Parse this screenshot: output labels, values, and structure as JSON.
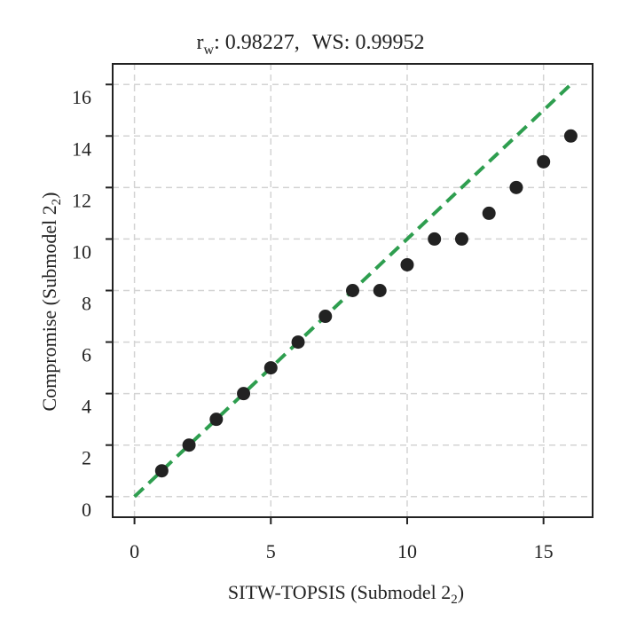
{
  "chart_data": {
    "type": "scatter",
    "title": {
      "r_symbol": "r",
      "r_sub": "w",
      "r_value": ": 0.98227,",
      "ws_text": "WS: 0.99952"
    },
    "xlabel": {
      "text": "SITW-TOPSIS (Submodel 2",
      "sub": "2",
      "close": ")"
    },
    "ylabel": {
      "text": "Compromise (Submodel 2",
      "sub": "2",
      "close": ")"
    },
    "xlim": [
      -0.8,
      16.8
    ],
    "ylim": [
      -0.8,
      16.8
    ],
    "xticks": [
      0,
      5,
      10,
      15
    ],
    "xtick_labels": [
      "0",
      "5",
      "10",
      "15"
    ],
    "yticks": [
      0,
      2,
      4,
      6,
      8,
      10,
      12,
      14,
      16
    ],
    "ytick_labels": [
      "0",
      "2",
      "4",
      "6",
      "8",
      "10",
      "12",
      "14",
      "16"
    ],
    "grid": true,
    "grid_x": [
      0,
      5,
      10,
      15
    ],
    "grid_y": [
      0,
      2,
      4,
      6,
      8,
      10,
      12,
      14,
      16
    ],
    "points": [
      {
        "x": 1,
        "y": 1
      },
      {
        "x": 2,
        "y": 2
      },
      {
        "x": 3,
        "y": 3
      },
      {
        "x": 4,
        "y": 4
      },
      {
        "x": 5,
        "y": 5
      },
      {
        "x": 6,
        "y": 6
      },
      {
        "x": 7,
        "y": 7
      },
      {
        "x": 8,
        "y": 8
      },
      {
        "x": 9,
        "y": 8
      },
      {
        "x": 10,
        "y": 9
      },
      {
        "x": 11,
        "y": 10
      },
      {
        "x": 12,
        "y": 10
      },
      {
        "x": 13,
        "y": 11
      },
      {
        "x": 14,
        "y": 12
      },
      {
        "x": 15,
        "y": 13
      },
      {
        "x": 16,
        "y": 14
      }
    ],
    "reference_line": {
      "from": [
        0,
        0
      ],
      "to": [
        16,
        16
      ],
      "style": "dashed"
    },
    "colors": {
      "points": "#222222",
      "reference_line": "#2e9e4f",
      "grid": "#d3d3d3",
      "frame": "#222222"
    }
  }
}
